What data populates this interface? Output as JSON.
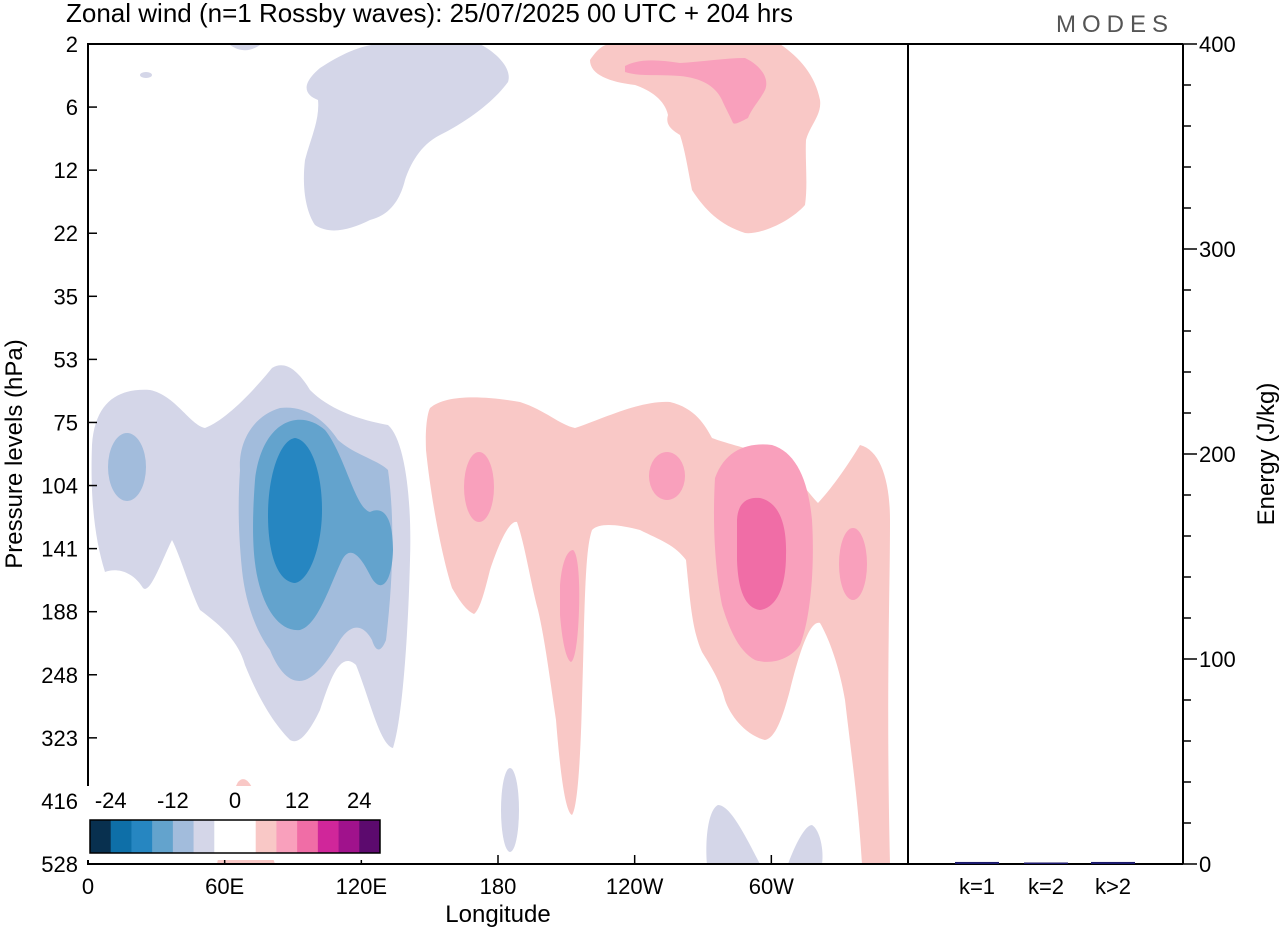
{
  "chart_data": [
    {
      "type": "heatmap",
      "title": "Zonal wind (n=1 Rossby waves):  25/07/2025  00 UTC  + 204 hrs",
      "xlabel": "Longitude",
      "ylabel": "Pressure levels (hPa)",
      "x_ticks": [
        "0",
        "60E",
        "120E",
        "180",
        "120W",
        "60W"
      ],
      "x_tick_degrees": [
        0,
        60,
        120,
        180,
        240,
        300
      ],
      "xlim": [
        0,
        360
      ],
      "y_ticks": [
        "2",
        "6",
        "12",
        "22",
        "35",
        "53",
        "75",
        "104",
        "141",
        "188",
        "248",
        "323",
        "416",
        "528"
      ],
      "colorbar": {
        "tick_labels": [
          "-24",
          "-12",
          "0",
          "12",
          "24"
        ],
        "colors": [
          "#08304f",
          "#0e6fa8",
          "#2686c1",
          "#63a3cd",
          "#a2bcdc",
          "#d4d6e8",
          "#ffffff",
          "#ffffff",
          "#f9c8c6",
          "#f9a0bc",
          "#f06da6",
          "#d0269a",
          "#a0128c",
          "#5c0a6e"
        ]
      },
      "features": [
        {
          "region": "stratosphere 60E-150E",
          "sign": "negative",
          "max_abs": 4
        },
        {
          "region": "stratosphere 140W-80W",
          "sign": "positive",
          "max_abs": 8
        },
        {
          "region": "troposphere 0-130E",
          "sign": "negative",
          "max_abs": 16
        },
        {
          "region": "troposphere 150E-40W",
          "sign": "positive",
          "max_abs": 12
        }
      ]
    },
    {
      "type": "bar",
      "ylabel": "Energy (J/kg)",
      "categories": [
        "k=1",
        "k=2",
        "k>2"
      ],
      "values": [
        1,
        0.3,
        1
      ],
      "ylim": [
        0,
        400
      ],
      "y_ticks": [
        "0",
        "100",
        "200",
        "300",
        "400"
      ]
    }
  ],
  "brand": "MODES",
  "colors": {
    "n1": "#d4d6e8",
    "n2": "#a2bcdc",
    "n3": "#63a3cd",
    "n4": "#2686c1",
    "p1": "#f9c8c6",
    "p2": "#f9a0bc",
    "p3": "#f06da6",
    "bar": "#1c1a6e"
  }
}
